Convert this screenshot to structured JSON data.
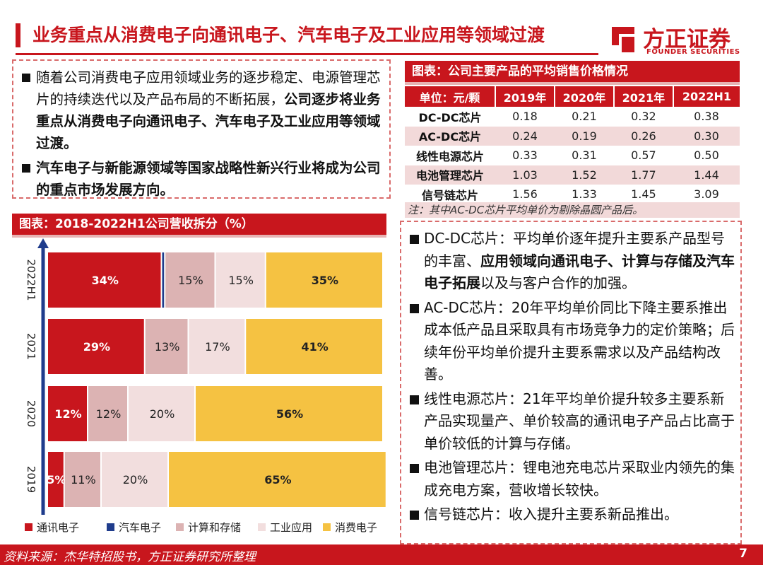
{
  "header": {
    "title": "业务重点从消费电子向通讯电子、汽车电子及工业应用等领域过渡",
    "logo_cn": "方正证券",
    "logo_en": "FOUNDER SECURITIES"
  },
  "intro": {
    "b1_pre": "随着公司消费电子应用领域业务的逐步稳定、电源管理芯片的持续迭代以及产品布局的不断拓展，",
    "b1_bold": "公司逐步将业务重点从消费电子向通讯电子、汽车电子及工业应用等领域过渡。",
    "b2_bold": "汽车电子与新能源领域等国家战略性新兴行业将成为公司的重点市场发展方向。"
  },
  "chart_header": "图表：2018-2022H1公司营收拆分（%）",
  "table_header": "图表：公司主要产品的平均销售价格情况",
  "table": {
    "columns": [
      "单位：元/颗",
      "2019年",
      "2020年",
      "2021年",
      "2022H1"
    ],
    "rows": [
      [
        "DC-DC芯片",
        "0.18",
        "0.21",
        "0.32",
        "0.38"
      ],
      [
        "AC-DC芯片",
        "0.24",
        "0.19",
        "0.26",
        "0.30"
      ],
      [
        "线性电源芯片",
        "0.33",
        "0.31",
        "0.57",
        "0.50"
      ],
      [
        "电池管理芯片",
        "1.03",
        "1.52",
        "1.77",
        "1.44"
      ],
      [
        "信号链芯片",
        "1.56",
        "1.33",
        "1.45",
        "3.09"
      ]
    ],
    "note": "注：其中AC-DC芯片平均单价为剔除晶圆产品后。"
  },
  "right": {
    "r1_pre": "DC-DC芯片：平均单价逐年提升主要系产品型号的丰富、",
    "r1_bold": "应用领域向通讯电子、计算与存储及汽车电子拓展",
    "r1_post": "以及与客户合作的加强。",
    "r2": "AC-DC芯片：20年平均单价同比下降主要系推出成本低产品且采取具有市场竞争力的定价策略；后续年份平均单价提升主要系需求以及产品结构改善。",
    "r3": "线性电源芯片：21年平均单价提升较多主要系新产品实现量产、单价较高的通讯电子产品占比高于单价较低的计算与存储。",
    "r4": "电池管理芯片：锂电池充电芯片采取业内领先的集成充电方案，营收增长较快。",
    "r5": "信号链芯片：收入提升主要系新品推出。"
  },
  "chart_data": {
    "type": "bar",
    "orientation": "horizontal-stacked",
    "categories": [
      "2022H1",
      "2021",
      "2020",
      "2019"
    ],
    "series": [
      {
        "name": "通讯电子",
        "color": "#c8161d",
        "values": [
          34,
          29,
          12,
          5
        ],
        "labels": [
          "34%",
          "29%",
          "12%",
          "5%"
        ]
      },
      {
        "name": "汽车电子",
        "color": "#1f3c8c",
        "values": [
          1,
          0,
          0,
          0
        ],
        "labels": [
          "",
          "",
          "",
          ""
        ]
      },
      {
        "name": "计算和存储",
        "color": "#dcb3b3",
        "values": [
          15,
          13,
          12,
          11
        ],
        "labels": [
          "15%",
          "13%",
          "12%",
          "11%"
        ]
      },
      {
        "name": "工业应用",
        "color": "#f2dede",
        "values": [
          15,
          17,
          20,
          20
        ],
        "labels": [
          "15%",
          "17%",
          "20%",
          "20%"
        ]
      },
      {
        "name": "消费电子",
        "color": "#f5c242",
        "values": [
          35,
          41,
          56,
          65
        ],
        "labels": [
          "35%",
          "41%",
          "56%",
          "65%"
        ]
      }
    ],
    "xlim": [
      0,
      100
    ],
    "legend_position": "bottom"
  },
  "footer": {
    "source": "资料来源：杰华特招股书，方正证券研究所整理",
    "page": "7"
  }
}
